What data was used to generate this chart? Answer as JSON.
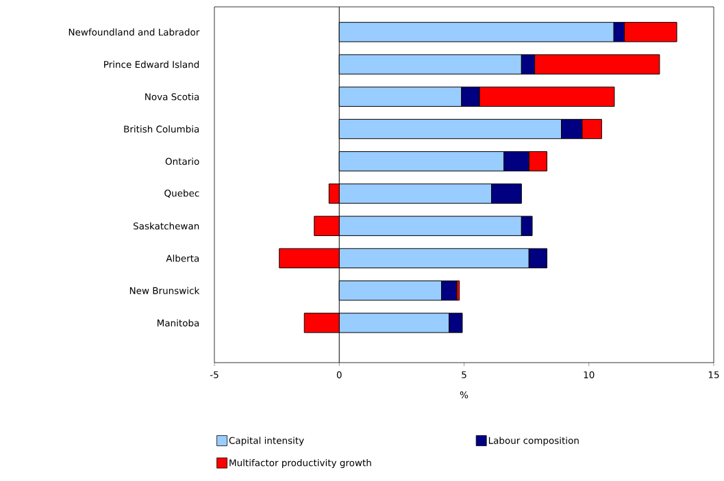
{
  "chart_data": {
    "type": "bar",
    "orientation": "horizontal",
    "stacked": true,
    "categories": [
      "Newfoundland and Labrador",
      "Prince Edward Island",
      "Nova Scotia",
      "British Columbia",
      "Ontario",
      "Quebec",
      "Saskatchewan",
      "Alberta",
      "New Brunswick",
      "Manitoba"
    ],
    "series": [
      {
        "name": "Capital intensity",
        "color": "#99ccff",
        "values": [
          11.0,
          7.3,
          4.9,
          8.9,
          6.6,
          6.1,
          7.3,
          7.6,
          4.1,
          4.4
        ]
      },
      {
        "name": "Labour composition",
        "color": "#000080",
        "values": [
          0.42,
          0.53,
          0.72,
          0.83,
          1.0,
          1.2,
          0.43,
          0.72,
          0.61,
          0.53
        ]
      },
      {
        "name": "Multifactor productivity growth",
        "color": "#ff0000",
        "values": [
          2.1,
          5.0,
          5.4,
          0.78,
          0.72,
          -0.41,
          -1.0,
          -2.4,
          0.1,
          -1.4
        ]
      }
    ],
    "xlim": [
      -5,
      15
    ],
    "xticks": [
      -5,
      0,
      5,
      10,
      15
    ],
    "xlabel": "%",
    "legend": "bottom"
  }
}
